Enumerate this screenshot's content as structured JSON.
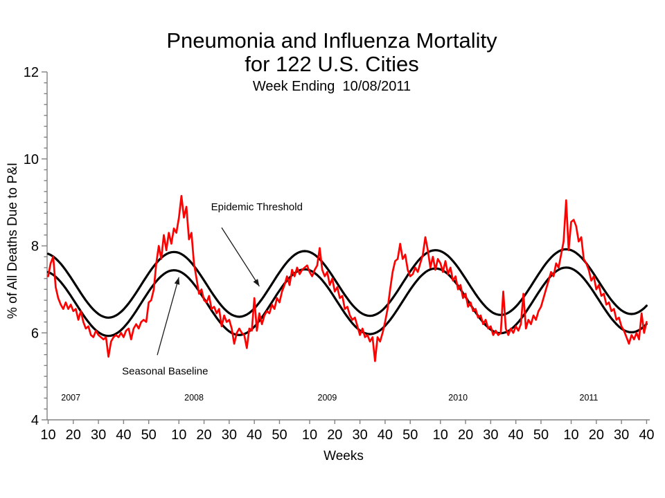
{
  "title": {
    "line1": "Pneumonia and Influenza Mortality",
    "line2": "for 122 U.S. Cities",
    "line3": "Week Ending  10/08/2011"
  },
  "chart_data": {
    "type": "line",
    "title": "Pneumonia and Influenza Mortality for 122 U.S. Cities",
    "subtitle": "Week Ending 10/08/2011",
    "xlabel": "Weeks",
    "ylabel": "% of All Deaths Due to P&I",
    "ylim": [
      4,
      12
    ],
    "y_major_ticks": [
      4,
      6,
      8,
      10,
      12
    ],
    "y_minor_tick_step": 0.25,
    "grid": "off",
    "legend": "none (curves labeled by in-plot arrows)",
    "x_axis_note": "weekly data, week index 0 = 2007 week 10, ticks every 10 MMWR weeks",
    "x_ticks": {
      "labels": [
        "10",
        "20",
        "30",
        "40",
        "50",
        "10",
        "20",
        "30",
        "40",
        "50",
        "10",
        "20",
        "30",
        "40",
        "50",
        "10",
        "20",
        "30",
        "40",
        "50",
        "10",
        "20",
        "30",
        "40"
      ],
      "week_indices": [
        0,
        10,
        20,
        30,
        40,
        52,
        62,
        72,
        82,
        92,
        104,
        114,
        124,
        134,
        144,
        156,
        166,
        176,
        186,
        196,
        208,
        218,
        228,
        238
      ]
    },
    "year_labels": [
      {
        "label": "2007",
        "week_index": 9
      },
      {
        "label": "2008",
        "week_index": 58
      },
      {
        "label": "2009",
        "week_index": 111
      },
      {
        "label": "2010",
        "week_index": 163
      },
      {
        "label": "2011",
        "week_index": 215
      }
    ],
    "series": {
      "observed": {
        "name": "Observed % of deaths due to P&I",
        "color": "#ff0000",
        "sampling": "weekly",
        "weekly_values_by_year": [
          {
            "year": 2007,
            "start_week": 10,
            "values": [
              7.3,
              7.6,
              7.75,
              7.05,
              6.8,
              6.65,
              6.55,
              6.7,
              6.55,
              6.65,
              6.5,
              6.55,
              6.3,
              6.5,
              6.25,
              6.1,
              6.15,
              5.95,
              5.9,
              6.05,
              5.95,
              5.9,
              5.85,
              5.9,
              5.45,
              5.8,
              5.9,
              5.95,
              5.9,
              6.0,
              5.9,
              6.05,
              6.1,
              5.85,
              6.1,
              6.2,
              6.1,
              6.25,
              6.3,
              6.25,
              6.7,
              6.75,
              7.0
            ]
          },
          {
            "year": 2008,
            "start_week": 1,
            "values": [
              7.6,
              8.0,
              7.7,
              8.25,
              7.9,
              8.3,
              8.05,
              8.4,
              8.3,
              8.65,
              9.15,
              8.65,
              8.9,
              8.15,
              8.3,
              7.6,
              7.25,
              6.9,
              7.0,
              6.75,
              6.7,
              6.85,
              6.55,
              6.6,
              6.45,
              6.55,
              6.15,
              6.4,
              6.25,
              6.3,
              6.1,
              5.75,
              6.0,
              6.1,
              6.0,
              5.95,
              5.65,
              6.1,
              6.05,
              6.8,
              6.05,
              6.45,
              6.2,
              6.4,
              6.5,
              6.45,
              6.65,
              6.55,
              6.8,
              6.7,
              6.95,
              7.1
            ]
          },
          {
            "year": 2009,
            "start_week": 1,
            "values": [
              7.3,
              7.1,
              7.45,
              7.3,
              7.5,
              7.35,
              7.45,
              7.5,
              7.55,
              7.4,
              7.3,
              7.45,
              7.55,
              7.95,
              7.45,
              7.3,
              7.4,
              7.1,
              7.25,
              6.95,
              7.05,
              6.8,
              6.85,
              6.55,
              6.6,
              6.4,
              6.3,
              6.35,
              6.15,
              5.95,
              6.1,
              5.9,
              5.95,
              5.8,
              5.9,
              5.35,
              5.9,
              5.8,
              6.0,
              6.25,
              6.55,
              7.0,
              7.4,
              7.65,
              7.7,
              8.05,
              7.7,
              7.8,
              7.45,
              7.3,
              7.35,
              7.5
            ]
          },
          {
            "year": 2010,
            "start_week": 1,
            "values": [
              7.4,
              7.6,
              7.8,
              8.2,
              7.9,
              7.5,
              7.75,
              7.45,
              7.7,
              7.6,
              7.4,
              7.65,
              7.35,
              7.5,
              7.2,
              7.3,
              7.0,
              7.1,
              6.8,
              6.9,
              6.6,
              6.7,
              6.5,
              6.55,
              6.35,
              6.4,
              6.2,
              6.3,
              6.1,
              6.15,
              5.95,
              6.05,
              5.95,
              6.0,
              6.95,
              6.1,
              5.95,
              6.1,
              6.0,
              6.15,
              6.05,
              6.2,
              6.9,
              6.1,
              6.3,
              6.2,
              6.4,
              6.3,
              6.5,
              6.6,
              6.8,
              7.0
            ]
          },
          {
            "year": 2011,
            "start_week": 1,
            "values": [
              7.2,
              7.4,
              7.3,
              7.6,
              7.5,
              7.8,
              8.1,
              9.05,
              7.9,
              8.55,
              8.6,
              8.45,
              8.1,
              8.2,
              7.7,
              7.6,
              7.45,
              7.2,
              7.3,
              7.0,
              7.1,
              6.85,
              6.9,
              6.65,
              6.7,
              6.5,
              6.55,
              6.3,
              6.35,
              6.15,
              6.05,
              5.9,
              5.75,
              5.95,
              5.85,
              6.0,
              5.85,
              6.45,
              6.0,
              6.25
            ]
          }
        ]
      },
      "seasonal_baseline": {
        "name": "Seasonal Baseline",
        "color": "#000000",
        "curve": "sinusoid",
        "midline_start": 6.67,
        "midline_drift_per_week": 0.0004,
        "amplitude": 0.75,
        "period_weeks": 52,
        "peak_week_index": 50,
        "winter_peak_value": 7.45,
        "summer_trough_value": 5.93
      },
      "epidemic_threshold": {
        "name": "Epidemic Threshold",
        "color": "#000000",
        "curve": "sinusoid, parallel to baseline",
        "offset_above_baseline": 0.42,
        "winter_peak_value": 7.9,
        "summer_trough_value": 6.35
      }
    },
    "annotations": [
      {
        "text": "Epidemic Threshold",
        "text_week": 83,
        "text_value": 8.9,
        "from_week": 69,
        "from_value": 8.42,
        "to_week": 84,
        "to_value": 7.07
      },
      {
        "text": "Seasonal Baseline",
        "text_week": 46.5,
        "text_value": 5.12,
        "from_week": 43.4,
        "from_value": 5.49,
        "to_week": 52,
        "to_value": 7.28
      }
    ]
  }
}
